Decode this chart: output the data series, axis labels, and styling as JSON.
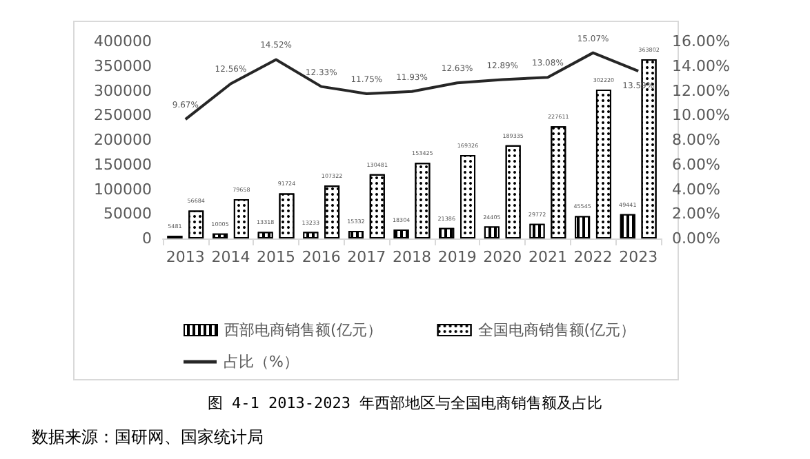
{
  "chart_data": {
    "type": "bar",
    "title": "图 4-1 2013-2023 年西部地区与全国电商销售额及占比",
    "annotations": [
      "数据来源：国研网、国家统计局"
    ],
    "categories": [
      "2013",
      "2014",
      "2015",
      "2016",
      "2017",
      "2018",
      "2019",
      "2020",
      "2021",
      "2022",
      "2023"
    ],
    "series": [
      {
        "name": "西部电商销售额(亿元）",
        "color": "#000000",
        "values": [
          5481,
          10005,
          13318,
          13233,
          15332,
          18304,
          21386,
          24405,
          29772,
          45545,
          49441
        ],
        "value_labels": [
          "5481",
          "10005",
          "13318",
          "13233",
          "15332",
          "18304",
          "21386",
          "24405",
          "29772",
          "45545",
          "49441"
        ]
      },
      {
        "name": "全国电商销售额(亿元）",
        "color": "#000000",
        "values": [
          56684,
          79658,
          91724,
          107322,
          130481,
          153425,
          169326,
          189335,
          227611,
          302220,
          363802
        ],
        "value_labels": [
          "56684",
          "79658",
          "91724",
          "107322",
          "130481",
          "153425",
          "169326",
          "189335",
          "227611",
          "302220",
          "363802"
        ]
      },
      {
        "name": "占比（%）",
        "type": "line",
        "axis": "y2",
        "color": "#262626",
        "marker": "none",
        "values": [
          9.67,
          12.56,
          14.52,
          12.33,
          11.75,
          11.93,
          12.63,
          12.89,
          13.08,
          15.07,
          13.59
        ],
        "value_labels": [
          "9.67%",
          "12.56%",
          "14.52%",
          "12.33%",
          "11.75%",
          "11.93%",
          "12.63%",
          "12.89%",
          "13.08%",
          "15.07%",
          "13.59%"
        ]
      }
    ],
    "ylim": [
      0,
      400000
    ],
    "yticks": [
      0,
      50000,
      100000,
      150000,
      200000,
      250000,
      300000,
      350000,
      400000
    ],
    "y2lim": [
      0,
      16
    ],
    "y2ticks": [
      {
        "value": 0,
        "label": "0.00%"
      },
      {
        "value": 2,
        "label": "2.00%"
      },
      {
        "value": 4,
        "label": "4.00%"
      },
      {
        "value": 6,
        "label": "6.00%"
      },
      {
        "value": 8,
        "label": "8.00%"
      },
      {
        "value": 10,
        "label": "10.00%"
      },
      {
        "value": 12,
        "label": "12.00%"
      },
      {
        "value": 14,
        "label": "14.00%"
      },
      {
        "value": 16,
        "label": "16.00%"
      }
    ],
    "grid": false,
    "legend": "bottom"
  }
}
